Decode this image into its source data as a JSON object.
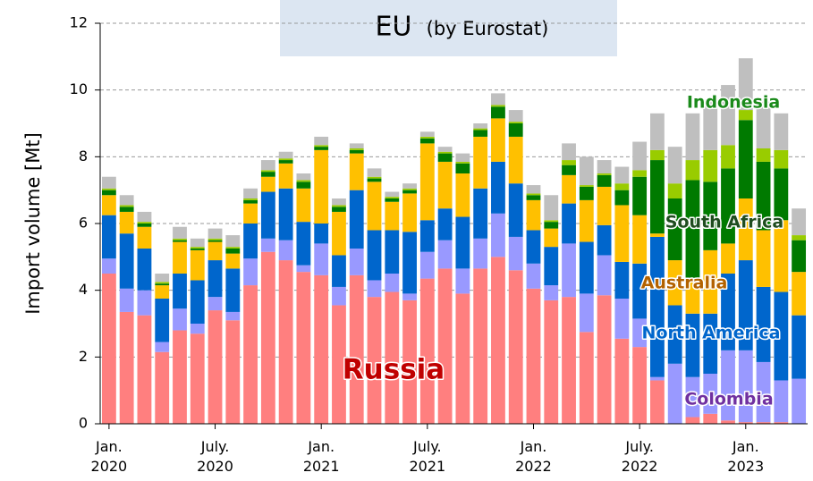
{
  "chart_data": {
    "type": "stacked_bar",
    "title": "EU",
    "subtitle": "(by Eurostat)",
    "y_label": "Import volume [Mt]",
    "categories": [
      "Jan.\n2020",
      null,
      null,
      null,
      null,
      null,
      "July.\n2020",
      null,
      null,
      null,
      null,
      null,
      "Jan.\n2021",
      null,
      null,
      null,
      null,
      null,
      "July.\n2021",
      null,
      null,
      null,
      null,
      null,
      "Jan.\n2022",
      null,
      null,
      null,
      null,
      null,
      "July.\n2022",
      null,
      null,
      null,
      null,
      null,
      "Jan.\n2023",
      null,
      null,
      null
    ],
    "ylim": [
      0,
      12
    ],
    "yticks": [
      0,
      2,
      4,
      6,
      8,
      10,
      12
    ],
    "grid": true,
    "series": [
      {
        "name": "Russia",
        "color": "#ff7f7f",
        "label_color": "#c00000",
        "values": [
          4.5,
          3.35,
          3.25,
          2.15,
          2.8,
          2.7,
          3.4,
          3.1,
          4.15,
          5.15,
          4.9,
          4.55,
          4.45,
          3.55,
          4.45,
          3.8,
          3.95,
          3.7,
          4.35,
          4.65,
          3.9,
          4.65,
          5.0,
          4.6,
          4.05,
          3.7,
          3.8,
          2.75,
          3.85,
          2.55,
          2.3,
          1.3,
          0,
          0.2,
          0.3,
          0.1,
          0.05,
          0.05,
          0.05,
          0
        ]
      },
      {
        "name": "Colombia",
        "color": "#9999ff",
        "label_color": "#7030a0",
        "values": [
          0.45,
          0.7,
          0.75,
          0.3,
          0.65,
          0.3,
          0.4,
          0.25,
          0.8,
          0.4,
          0.6,
          0.2,
          0.95,
          0.55,
          0.8,
          0.5,
          0.55,
          0.2,
          0.8,
          0.85,
          0.75,
          0.9,
          1.3,
          1.0,
          0.75,
          0.45,
          1.6,
          1.15,
          1.2,
          1.2,
          0.85,
          0.1,
          1.8,
          1.2,
          1.2,
          2.1,
          2.15,
          1.8,
          1.25,
          1.35
        ]
      },
      {
        "name": "North America",
        "color": "#0066cc",
        "label_color": "#0066cc",
        "values": [
          1.3,
          1.65,
          1.25,
          1.3,
          1.05,
          1.3,
          1.1,
          1.3,
          1.05,
          1.4,
          1.55,
          1.3,
          0.6,
          0.95,
          1.75,
          1.5,
          1.3,
          1.85,
          0.95,
          0.95,
          1.55,
          1.5,
          1.55,
          1.6,
          1.0,
          1.15,
          1.2,
          1.55,
          0.9,
          1.1,
          1.65,
          4.2,
          1.75,
          1.9,
          1.8,
          2.3,
          2.7,
          2.25,
          2.65,
          1.9
        ]
      },
      {
        "name": "Australia",
        "color": "#ffc000",
        "label_color": "#b36200",
        "values": [
          0.6,
          0.65,
          0.65,
          0.4,
          0.95,
          0.9,
          0.55,
          0.45,
          0.6,
          0.45,
          0.75,
          1.0,
          2.2,
          1.3,
          1.1,
          1.45,
          0.85,
          1.15,
          2.3,
          1.4,
          1.3,
          1.55,
          1.3,
          1.4,
          0.9,
          0.55,
          0.85,
          1.25,
          1.15,
          1.7,
          1.45,
          0.1,
          1.35,
          1.0,
          1.9,
          0.9,
          1.85,
          1.7,
          2.15,
          1.3
        ]
      },
      {
        "name": "South Africa",
        "color": "#007a00",
        "label_color": "#1f4d1f",
        "values": [
          0.15,
          0.15,
          0.1,
          0.05,
          0.05,
          0.05,
          0.05,
          0.15,
          0.1,
          0.15,
          0.1,
          0.2,
          0.1,
          0.15,
          0.1,
          0.1,
          0.1,
          0.1,
          0.15,
          0.25,
          0.3,
          0.2,
          0.35,
          0.4,
          0.15,
          0.2,
          0.3,
          0.4,
          0.35,
          0.45,
          1.15,
          2.2,
          1.85,
          3.0,
          2.05,
          2.25,
          2.35,
          2.05,
          1.55,
          0.95
        ]
      },
      {
        "name": "Indonesia",
        "color": "#99cc00",
        "label_color": "#1a8a1a",
        "values": [
          0.05,
          0.05,
          0.05,
          0.05,
          0.05,
          0.05,
          0.05,
          0.05,
          0.05,
          0.05,
          0.05,
          0.05,
          0.05,
          0.05,
          0.05,
          0.05,
          0.05,
          0.05,
          0.05,
          0.05,
          0.05,
          0.05,
          0.05,
          0.05,
          0.05,
          0.05,
          0.15,
          0.05,
          0.05,
          0.2,
          0.2,
          0.3,
          0.45,
          0.6,
          0.95,
          0.7,
          0.3,
          0.4,
          0.55,
          0.15
        ]
      },
      {
        "color": "#bfbfbf",
        "values": [
          0.35,
          0.3,
          0.3,
          0.25,
          0.35,
          0.25,
          0.3,
          0.35,
          0.3,
          0.3,
          0.2,
          0.2,
          0.25,
          0.2,
          0.15,
          0.25,
          0.15,
          0.15,
          0.15,
          0.15,
          0.25,
          0.15,
          0.35,
          0.35,
          0.25,
          0.75,
          0.5,
          0.85,
          0.4,
          0.5,
          0.85,
          1.1,
          1.1,
          1.4,
          1.5,
          1.8,
          1.55,
          1.4,
          1.1,
          0.8
        ]
      }
    ]
  }
}
